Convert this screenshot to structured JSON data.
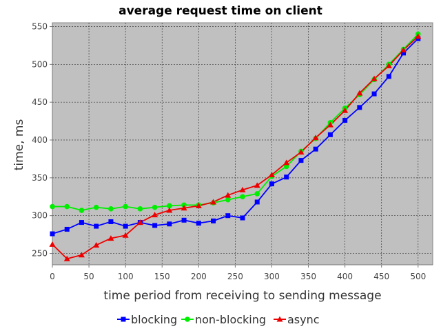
{
  "chart_data": {
    "type": "line",
    "title": "average request time on client",
    "xlabel": "time period from receiving to sending message",
    "ylabel": "time, ms",
    "xlim": [
      0,
      520
    ],
    "ylim": [
      235,
      555
    ],
    "xticks": [
      0,
      50,
      100,
      150,
      200,
      250,
      300,
      350,
      400,
      450,
      500
    ],
    "yticks": [
      250,
      300,
      350,
      400,
      450,
      500,
      550
    ],
    "grid": true,
    "legend_position": "bottom",
    "plot_background": "#c0c0c0",
    "x": [
      0,
      20,
      40,
      60,
      80,
      100,
      120,
      140,
      160,
      180,
      200,
      220,
      240,
      260,
      280,
      300,
      320,
      340,
      360,
      380,
      400,
      420,
      440,
      460,
      480,
      500
    ],
    "series": [
      {
        "name": "blocking",
        "color": "#0000ff",
        "marker": "square",
        "values": [
          276,
          282,
          291,
          286,
          292,
          286,
          291,
          287,
          289,
          294,
          290,
          293,
          300,
          297,
          318,
          342,
          351,
          373,
          388,
          407,
          426,
          443,
          461,
          484,
          515,
          534
        ]
      },
      {
        "name": "non-blocking",
        "color": "#00ee00",
        "marker": "circle",
        "values": [
          312,
          312,
          307,
          311,
          309,
          312,
          309,
          311,
          313,
          314,
          314,
          317,
          321,
          325,
          329,
          352,
          365,
          385,
          402,
          423,
          442,
          460,
          480,
          500,
          520,
          540
        ]
      },
      {
        "name": "async",
        "color": "#ee0000",
        "marker": "triangle",
        "values": [
          262,
          243,
          248,
          261,
          270,
          274,
          291,
          301,
          307,
          310,
          313,
          318,
          327,
          334,
          340,
          354,
          370,
          384,
          403,
          420,
          439,
          462,
          481,
          498,
          519,
          537
        ]
      }
    ]
  }
}
